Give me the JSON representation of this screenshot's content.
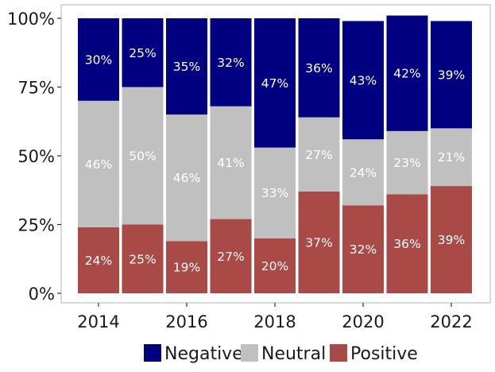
{
  "chart_data": {
    "type": "bar",
    "stacked": true,
    "title": "",
    "xlabel": "",
    "ylabel": "",
    "ylim": [
      0,
      100
    ],
    "y_ticks": [
      0,
      25,
      50,
      75,
      100
    ],
    "y_tick_labels": [
      "0%",
      "25%",
      "50%",
      "75%",
      "100%"
    ],
    "categories": [
      2014,
      2015,
      2016,
      2017,
      2018,
      2019,
      2020,
      2021,
      2022
    ],
    "x_tick_labels": [
      "2014",
      "2016",
      "2018",
      "2020",
      "2022"
    ],
    "series": [
      {
        "name": "Positive",
        "color": "#A94A46",
        "values": [
          24,
          25,
          19,
          27,
          20,
          37,
          32,
          36,
          39
        ],
        "labels": [
          "24%",
          "25%",
          "19%",
          "27%",
          "20%",
          "37%",
          "32%",
          "36%",
          "39%"
        ]
      },
      {
        "name": "Neutral",
        "color": "#C0C0C0",
        "values": [
          46,
          50,
          46,
          41,
          33,
          27,
          24,
          23,
          21
        ],
        "labels": [
          "46%",
          "50%",
          "46%",
          "41%",
          "33%",
          "27%",
          "24%",
          "23%",
          "21%"
        ]
      },
      {
        "name": "Negative",
        "color": "#000080",
        "values": [
          30,
          25,
          35,
          32,
          47,
          36,
          43,
          42,
          39
        ],
        "labels": [
          "30%",
          "25%",
          "35%",
          "32%",
          "47%",
          "36%",
          "43%",
          "42%",
          "39%"
        ]
      }
    ],
    "legend": {
      "position": "bottom",
      "entries": [
        {
          "label": "Negative",
          "color": "#000080"
        },
        {
          "label": "Neutral",
          "color": "#C0C0C0"
        },
        {
          "label": "Positive",
          "color": "#A94A46"
        }
      ]
    },
    "grid": false,
    "panel_border": true
  }
}
